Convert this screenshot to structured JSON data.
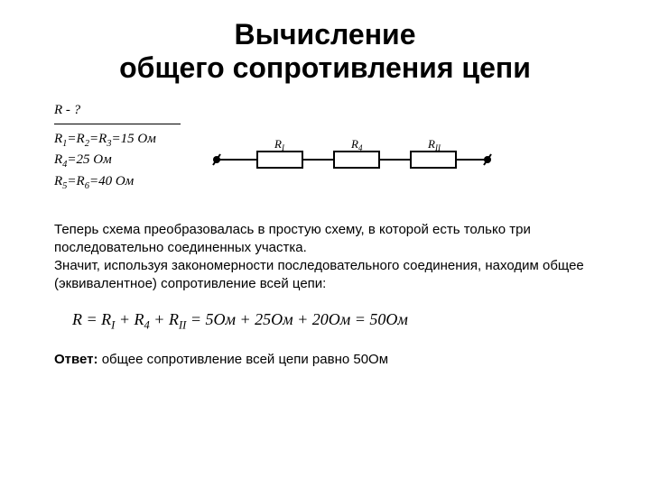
{
  "title_line1": "Вычисление",
  "title_line2": "общего сопротивления цепи",
  "given": {
    "find": "R - ?",
    "line1_a": "R",
    "line1_b": "=R",
    "line1_c": "=R",
    "line1_d": "=15 Ом",
    "line2_a": "R",
    "line2_b": "=25 Ом",
    "line3_a": "R",
    "line3_b": "=R",
    "line3_c": "=40 Ом"
  },
  "circuit": {
    "labels": [
      "R",
      "R",
      "R"
    ],
    "subs": [
      "I",
      "4",
      "II"
    ],
    "resistor_w": 50,
    "resistor_h": 18,
    "wire_color": "#000000",
    "stroke_width": 2,
    "spacing": 35,
    "terminal_r": 4
  },
  "paragraph1": "Теперь схема преобразовалась в простую схему, в которой есть только три последовательно соединенных участка.",
  "paragraph2": "Значит, используя закономерности последовательного соединения, находим общее (эквивалентное) сопротивление всей цепи:",
  "formula": {
    "lhs": "R = R",
    "s1": "I",
    "p1": " + R",
    "s2": "4",
    "p2": " + R",
    "s3": "II",
    "rhs": " = 5Ом + 25Ом + 20Ом = 50Ом"
  },
  "answer_label": "Ответ:",
  "answer_text": " общее сопротивление всей цепи равно 50Ом"
}
